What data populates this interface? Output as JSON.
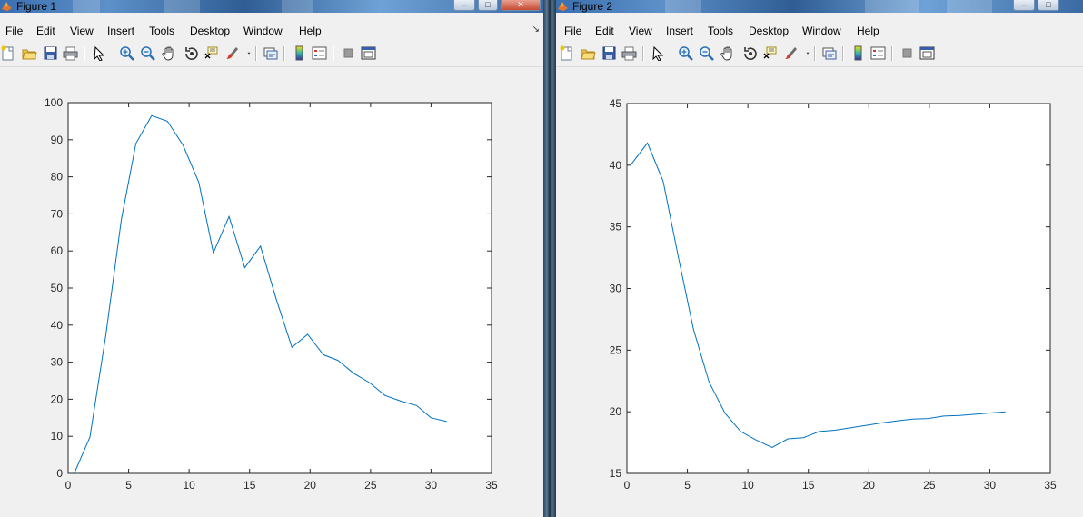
{
  "figures": [
    {
      "title": "Figure 1",
      "menu": [
        "File",
        "Edit",
        "View",
        "Insert",
        "Tools",
        "Desktop",
        "Window",
        "Help"
      ],
      "chart_data": {
        "type": "line",
        "x": [
          0.5,
          1.8,
          3.1,
          4.4,
          5.6,
          6.9,
          8.2,
          9.5,
          10.8,
          12.0,
          13.3,
          14.6,
          15.9,
          17.2,
          18.5,
          19.8,
          21.1,
          22.3,
          23.6,
          24.9,
          26.2,
          27.5,
          28.8,
          30.0,
          31.3
        ],
        "values": [
          0,
          9.8,
          37,
          68.5,
          89,
          96.5,
          95,
          88.5,
          78.5,
          59.5,
          69.3,
          55.5,
          61.3,
          47,
          34,
          37.5,
          32,
          30.5,
          27,
          24.5,
          21,
          19.5,
          18.3,
          15,
          14
        ],
        "xlim": [
          0,
          35
        ],
        "ylim": [
          0,
          100
        ],
        "xticks": [
          0,
          5,
          10,
          15,
          20,
          25,
          30,
          35
        ],
        "yticks": [
          0,
          10,
          20,
          30,
          40,
          50,
          60,
          70,
          80,
          90,
          100
        ],
        "xtick_labels": [
          "0",
          "5",
          "10",
          "15",
          "20",
          "25",
          "30",
          "35"
        ],
        "ytick_labels": [
          "0",
          "10",
          "20",
          "30",
          "40",
          "50",
          "60",
          "70",
          "80",
          "90",
          "100"
        ],
        "line_color": "#0072bd",
        "grid": false
      }
    },
    {
      "title": "Figure 2",
      "menu": [
        "File",
        "Edit",
        "View",
        "Insert",
        "Tools",
        "Desktop",
        "Window",
        "Help"
      ],
      "chart_data": {
        "type": "line",
        "x": [
          0.3,
          1.7,
          3.0,
          4.3,
          5.5,
          6.8,
          8.1,
          9.4,
          10.7,
          12.0,
          13.3,
          14.6,
          15.9,
          17.2,
          18.5,
          19.8,
          21.1,
          22.3,
          23.6,
          24.9,
          26.2,
          27.5,
          28.8,
          30.0,
          31.3
        ],
        "values": [
          40,
          41.8,
          38.7,
          32.3,
          26.7,
          22.4,
          19.9,
          18.4,
          17.7,
          17.1,
          17.8,
          17.9,
          18.4,
          18.5,
          18.7,
          18.9,
          19.1,
          19.25,
          19.4,
          19.45,
          19.65,
          19.7,
          19.8,
          19.9,
          20
        ],
        "xlim": [
          0,
          35
        ],
        "ylim": [
          15,
          45
        ],
        "xticks": [
          0,
          5,
          10,
          15,
          20,
          25,
          30,
          35
        ],
        "yticks": [
          15,
          20,
          25,
          30,
          35,
          40,
          45
        ],
        "xtick_labels": [
          "0",
          "5",
          "10",
          "15",
          "20",
          "25",
          "30",
          "35"
        ],
        "ytick_labels": [
          "15",
          "20",
          "25",
          "30",
          "35",
          "40",
          "45"
        ],
        "line_color": "#0072bd",
        "grid": false
      }
    }
  ],
  "toolbar_icons": [
    "new-figure-icon",
    "open-file-icon",
    "save-icon",
    "print-icon",
    "select-arrow-icon",
    "zoom-in-icon",
    "zoom-out-icon",
    "pan-hand-icon",
    "rotate-3d-icon",
    "data-cursor-icon",
    "brush-icon",
    "brush-dropdown-icon",
    "link-plot-icon",
    "insert-colorbar-icon",
    "insert-legend-icon",
    "hide-plot-tools-icon",
    "show-plot-tools-icon"
  ],
  "colors": {
    "window_bg": "#f0f0f0",
    "axes_bg": "#ffffff",
    "line": "#0072bd",
    "titlebar": "#3a6fb0"
  }
}
